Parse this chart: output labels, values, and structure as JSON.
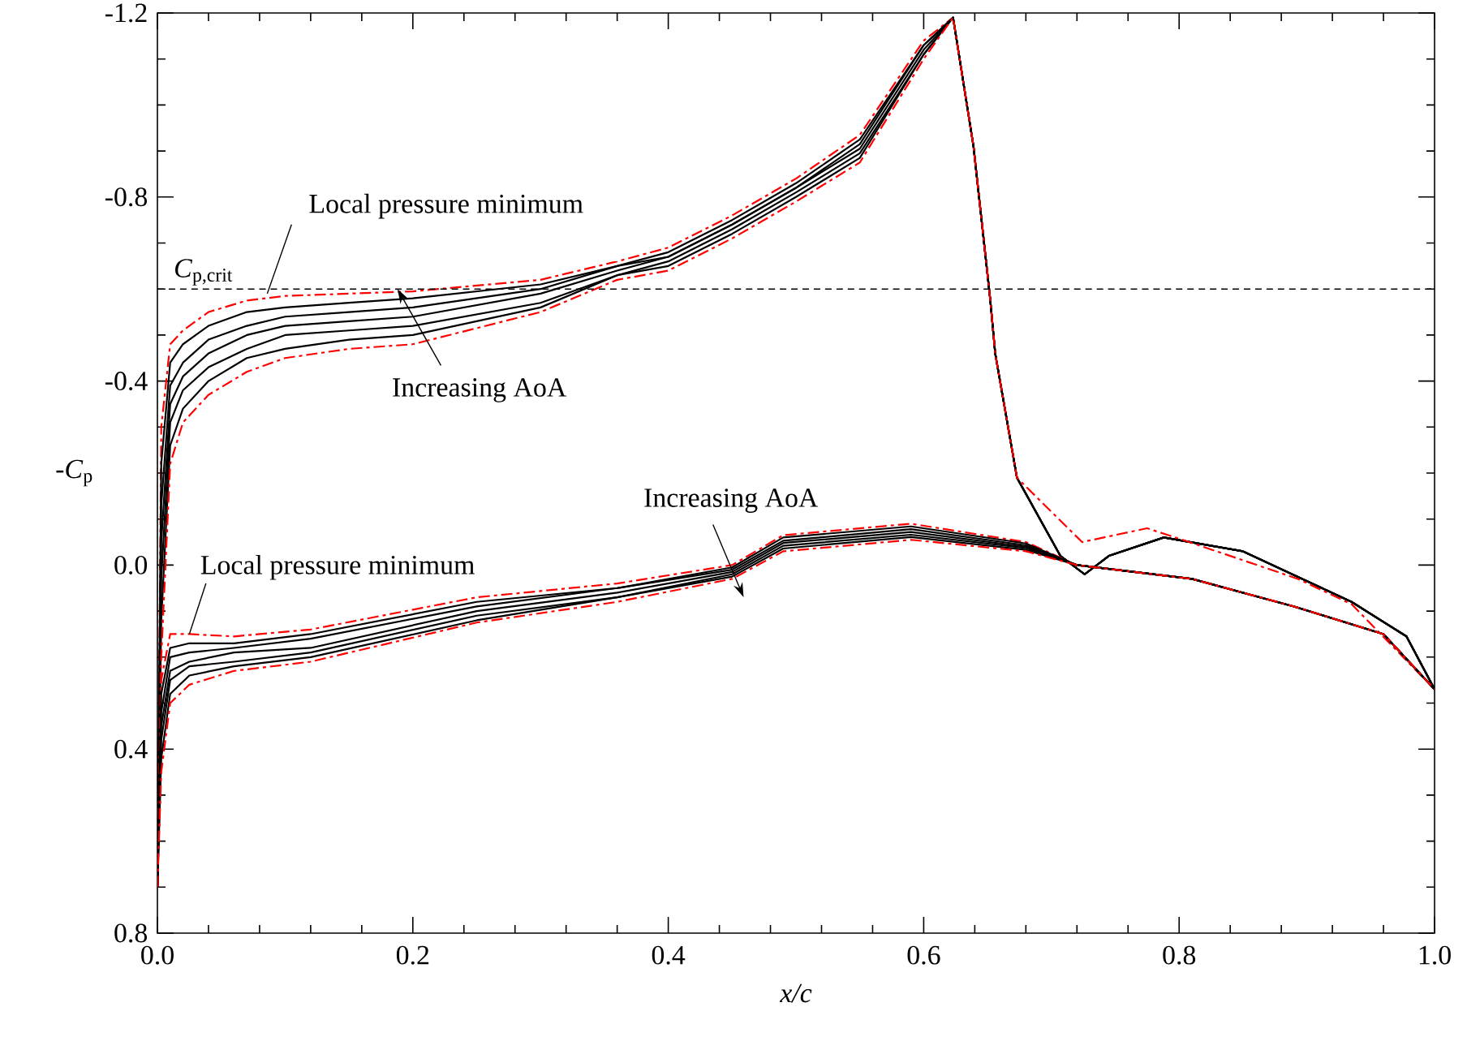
{
  "chart_data": {
    "type": "line",
    "xlabel": "x/c",
    "ylabel": "-*C*$_{p}$",
    "xlim": [
      0,
      1
    ],
    "ylim": [
      0.8,
      -1.2
    ],
    "xticks": [
      {
        "value": 0,
        "label": "0.0"
      },
      {
        "value": 0.04,
        "label": null
      },
      {
        "value": 0.08,
        "label": null
      },
      {
        "value": 0.12,
        "label": null
      },
      {
        "value": 0.16,
        "label": null
      },
      0.2,
      {
        "value": 0.24,
        "label": null
      },
      {
        "value": 0.28,
        "label": null
      },
      {
        "value": 0.32,
        "label": null
      },
      {
        "value": 0.36,
        "label": null
      },
      0.4,
      {
        "value": 0.44,
        "label": null
      },
      {
        "value": 0.48,
        "label": null
      },
      {
        "value": 0.52,
        "label": null
      },
      {
        "value": 0.56,
        "label": null
      },
      0.6,
      {
        "value": 0.64,
        "label": null
      },
      {
        "value": 0.68,
        "label": null
      },
      {
        "value": 0.72,
        "label": null
      },
      {
        "value": 0.76,
        "label": null
      },
      0.8,
      {
        "value": 0.84,
        "label": null
      },
      {
        "value": 0.88,
        "label": null
      },
      {
        "value": 0.92,
        "label": null
      },
      {
        "value": 0.96,
        "label": null
      },
      {
        "value": 1,
        "label": "1.0"
      }
    ],
    "yticks": [
      -1.2,
      {
        "value": -1.1,
        "label": null
      },
      {
        "value": -1.0,
        "label": null
      },
      {
        "value": -0.9,
        "label": null
      },
      -0.8,
      {
        "value": -0.7,
        "label": null
      },
      {
        "value": -0.6,
        "label": null
      },
      {
        "value": -0.5,
        "label": null
      },
      -0.4,
      {
        "value": -0.3,
        "label": null
      },
      {
        "value": -0.2,
        "label": null
      },
      {
        "value": -0.1,
        "label": null
      },
      {
        "value": 0,
        "label": "0.0"
      },
      {
        "value": 0.1,
        "label": null
      },
      {
        "value": 0.2,
        "label": null
      },
      {
        "value": 0.3,
        "label": null
      },
      0.4,
      {
        "value": 0.5,
        "label": null
      },
      {
        "value": 0.6,
        "label": null
      },
      {
        "value": 0.7,
        "label": null
      },
      0.8
    ],
    "ref_lines": [
      {
        "axis": "y",
        "value": -0.6,
        "label": "*C*$_{p,crit}$",
        "color": "#000000",
        "line_style": "dashed"
      }
    ],
    "annotations": [
      {
        "text": "Local pressure minimum",
        "x": 0.086,
        "y": -0.59
      },
      {
        "text": "Local pressure minimum",
        "x": 0.025,
        "y": 0.15
      },
      {
        "text": "Increasing AoA",
        "x": 0.188,
        "y": -0.6
      },
      "Increasing AoA"
    ],
    "series": [
      {
        "color": "#ff0000",
        "line_style": "dashed",
        "x": [
          0,
          0.003,
          0.01,
          0.02,
          0.04,
          0.07,
          0.1,
          0.15,
          0.2,
          0.3,
          0.36,
          0.4,
          0.45,
          0.5,
          0.55,
          0.6,
          0.623,
          0.639,
          0.652,
          0.656,
          0.673,
          0.707,
          0.726,
          0.745,
          0.788,
          0.85,
          0.935,
          0.978,
          1.0
        ],
        "values": [
          0.7,
          -0.3,
          -0.48,
          -0.51,
          -0.55,
          -0.575,
          -0.585,
          -0.59,
          -0.595,
          -0.62,
          -0.66,
          -0.69,
          -0.76,
          -0.84,
          -0.935,
          -1.14,
          -1.19,
          -0.91,
          -0.58,
          -0.46,
          -0.19,
          -0.02,
          0.02,
          -0.02,
          -0.06,
          -0.03,
          0.08,
          0.155,
          0.27
        ]
      },
      {
        "color": "#000000",
        "line_style": "solid",
        "x": [
          0,
          0.003,
          0.01,
          0.02,
          0.04,
          0.07,
          0.1,
          0.15,
          0.2,
          0.3,
          0.36,
          0.4,
          0.45,
          0.5,
          0.55,
          0.6,
          0.623,
          0.639,
          0.652,
          0.656,
          0.673,
          0.707,
          0.726,
          0.745,
          0.788,
          0.85,
          0.935,
          0.978,
          1.0
        ],
        "values": [
          0.7,
          -0.22,
          -0.44,
          -0.48,
          -0.52,
          -0.55,
          -0.56,
          -0.57,
          -0.58,
          -0.61,
          -0.65,
          -0.68,
          -0.75,
          -0.83,
          -0.925,
          -1.13,
          -1.19,
          -0.91,
          -0.58,
          -0.46,
          -0.19,
          -0.02,
          0.02,
          -0.02,
          -0.06,
          -0.03,
          0.08,
          0.155,
          0.27
        ]
      },
      {
        "color": "#000000",
        "line_style": "solid",
        "x": [
          0,
          0.003,
          0.01,
          0.02,
          0.04,
          0.07,
          0.1,
          0.15,
          0.2,
          0.3,
          0.36,
          0.4,
          0.45,
          0.5,
          0.55,
          0.6,
          0.623,
          0.639,
          0.652,
          0.656,
          0.673,
          0.707,
          0.726,
          0.745,
          0.788,
          0.85,
          0.935,
          0.978,
          1.0
        ],
        "values": [
          0.7,
          -0.13,
          -0.39,
          -0.44,
          -0.49,
          -0.52,
          -0.54,
          -0.55,
          -0.56,
          -0.6,
          -0.65,
          -0.67,
          -0.74,
          -0.82,
          -0.915,
          -1.13,
          -1.19,
          -0.91,
          -0.58,
          -0.46,
          -0.19,
          -0.02,
          0.02,
          -0.02,
          -0.06,
          -0.03,
          0.08,
          0.155,
          0.27
        ]
      },
      {
        "color": "#000000",
        "line_style": "solid",
        "x": [
          0,
          0.003,
          0.01,
          0.02,
          0.04,
          0.07,
          0.1,
          0.15,
          0.2,
          0.3,
          0.36,
          0.4,
          0.45,
          0.5,
          0.55,
          0.6,
          0.623,
          0.639,
          0.652,
          0.656,
          0.673,
          0.707,
          0.726,
          0.745,
          0.788,
          0.85,
          0.935,
          0.978,
          1.0
        ],
        "values": [
          0.7,
          -0.05,
          -0.35,
          -0.41,
          -0.46,
          -0.5,
          -0.52,
          -0.53,
          -0.54,
          -0.59,
          -0.64,
          -0.67,
          -0.74,
          -0.82,
          -0.905,
          -1.12,
          -1.19,
          -0.91,
          -0.58,
          -0.46,
          -0.19,
          -0.02,
          0.02,
          -0.02,
          -0.06,
          -0.03,
          0.08,
          0.155,
          0.27
        ]
      },
      {
        "color": "#000000",
        "line_style": "solid",
        "x": [
          0,
          0.003,
          0.01,
          0.02,
          0.04,
          0.07,
          0.1,
          0.15,
          0.2,
          0.3,
          0.36,
          0.4,
          0.45,
          0.5,
          0.55,
          0.6,
          0.623,
          0.639,
          0.652,
          0.656,
          0.673,
          0.707,
          0.726,
          0.745,
          0.788,
          0.85,
          0.935,
          0.978,
          1.0
        ],
        "values": [
          0.7,
          0.03,
          -0.31,
          -0.38,
          -0.43,
          -0.47,
          -0.5,
          -0.51,
          -0.52,
          -0.57,
          -0.63,
          -0.66,
          -0.73,
          -0.81,
          -0.895,
          -1.11,
          -1.19,
          -0.91,
          -0.58,
          -0.46,
          -0.19,
          -0.02,
          0.02,
          -0.02,
          -0.06,
          -0.03,
          0.08,
          0.155,
          0.27
        ]
      },
      {
        "color": "#000000",
        "line_style": "solid",
        "x": [
          0,
          0.003,
          0.01,
          0.02,
          0.04,
          0.07,
          0.1,
          0.15,
          0.2,
          0.3,
          0.36,
          0.4,
          0.45,
          0.5,
          0.55,
          0.6,
          0.623,
          0.639,
          0.652,
          0.656,
          0.673,
          0.707,
          0.726,
          0.745,
          0.788,
          0.85,
          0.935,
          0.978,
          1.0
        ],
        "values": [
          0.7,
          0.12,
          -0.26,
          -0.34,
          -0.4,
          -0.45,
          -0.47,
          -0.49,
          -0.5,
          -0.56,
          -0.63,
          -0.65,
          -0.72,
          -0.8,
          -0.885,
          -1.11,
          -1.19,
          -0.91,
          -0.58,
          -0.46,
          -0.19,
          -0.02,
          0.02,
          -0.02,
          -0.06,
          -0.03,
          0.08,
          0.155,
          0.27
        ]
      },
      {
        "color": "#ff0000",
        "line_style": "dashed",
        "x": [
          0,
          0.003,
          0.01,
          0.02,
          0.04,
          0.07,
          0.1,
          0.15,
          0.2,
          0.3,
          0.36,
          0.4,
          0.45,
          0.5,
          0.55,
          0.6,
          0.623,
          0.639,
          0.652,
          0.656,
          0.673,
          0.724,
          0.775,
          0.808,
          0.893,
          0.935,
          1.0
        ],
        "values": [
          0.7,
          0.2,
          -0.22,
          -0.31,
          -0.37,
          -0.42,
          -0.45,
          -0.47,
          -0.48,
          -0.55,
          -0.62,
          -0.64,
          -0.71,
          -0.79,
          -0.875,
          -1.1,
          -1.19,
          -0.91,
          -0.58,
          -0.46,
          -0.19,
          -0.05,
          -0.08,
          -0.05,
          0.03,
          0.085,
          0.27
        ]
      },
      {
        "color": "#ff0000",
        "line_style": "dashed",
        "x": [
          0,
          0.003,
          0.01,
          0.025,
          0.06,
          0.12,
          0.25,
          0.36,
          0.45,
          0.49,
          0.59,
          0.68,
          0.72,
          0.81,
          0.89,
          0.96,
          1.0
        ],
        "values": [
          0.7,
          0.25,
          0.15,
          0.15,
          0.155,
          0.14,
          0.07,
          0.04,
          0.0,
          -0.065,
          -0.09,
          -0.05,
          0.0,
          0.03,
          0.09,
          0.15,
          0.27
        ]
      },
      {
        "color": "#000000",
        "line_style": "solid",
        "x": [
          0,
          0.003,
          0.01,
          0.025,
          0.06,
          0.12,
          0.25,
          0.36,
          0.45,
          0.49,
          0.59,
          0.68,
          0.72,
          0.81,
          0.89,
          0.96,
          1.0
        ],
        "values": [
          0.7,
          0.28,
          0.18,
          0.17,
          0.17,
          0.15,
          0.08,
          0.05,
          0.005,
          -0.06,
          -0.084,
          -0.047,
          0.0,
          0.03,
          0.09,
          0.15,
          0.27
        ]
      },
      {
        "color": "#000000",
        "line_style": "solid",
        "x": [
          0,
          0.003,
          0.01,
          0.025,
          0.06,
          0.12,
          0.25,
          0.36,
          0.45,
          0.49,
          0.59,
          0.68,
          0.72,
          0.81,
          0.89,
          0.96,
          1.0
        ],
        "values": [
          0.7,
          0.32,
          0.2,
          0.19,
          0.18,
          0.16,
          0.09,
          0.05,
          0.01,
          -0.053,
          -0.078,
          -0.043,
          0.0,
          0.03,
          0.09,
          0.15,
          0.27
        ]
      },
      {
        "color": "#000000",
        "line_style": "solid",
        "x": [
          0,
          0.003,
          0.01,
          0.025,
          0.06,
          0.12,
          0.25,
          0.36,
          0.45,
          0.49,
          0.59,
          0.68,
          0.72,
          0.81,
          0.89,
          0.96,
          1.0
        ],
        "values": [
          0.7,
          0.35,
          0.23,
          0.21,
          0.19,
          0.18,
          0.1,
          0.06,
          0.015,
          -0.048,
          -0.072,
          -0.04,
          0.0,
          0.03,
          0.09,
          0.15,
          0.27
        ]
      },
      {
        "color": "#000000",
        "line_style": "solid",
        "x": [
          0,
          0.003,
          0.01,
          0.025,
          0.06,
          0.12,
          0.25,
          0.36,
          0.45,
          0.49,
          0.59,
          0.68,
          0.72,
          0.81,
          0.89,
          0.96,
          1.0
        ],
        "values": [
          0.7,
          0.38,
          0.25,
          0.22,
          0.21,
          0.19,
          0.11,
          0.07,
          0.02,
          -0.042,
          -0.066,
          -0.037,
          0.0,
          0.03,
          0.09,
          0.15,
          0.27
        ]
      },
      {
        "color": "#000000",
        "line_style": "solid",
        "x": [
          0,
          0.003,
          0.01,
          0.025,
          0.06,
          0.12,
          0.25,
          0.36,
          0.45,
          0.49,
          0.59,
          0.68,
          0.72,
          0.81,
          0.89,
          0.96,
          1.0
        ],
        "values": [
          0.7,
          0.42,
          0.28,
          0.24,
          0.22,
          0.2,
          0.12,
          0.07,
          0.025,
          -0.036,
          -0.061,
          -0.033,
          0.0,
          0.03,
          0.09,
          0.15,
          0.27
        ]
      },
      {
        "color": "#ff0000",
        "line_style": "dashed",
        "x": [
          0,
          0.003,
          0.01,
          0.025,
          0.06,
          0.12,
          0.25,
          0.36,
          0.45,
          0.49,
          0.59,
          0.68,
          0.72,
          0.81,
          0.89,
          0.96,
          1.0
        ],
        "values": [
          0.7,
          0.45,
          0.3,
          0.26,
          0.23,
          0.21,
          0.125,
          0.08,
          0.03,
          -0.03,
          -0.055,
          -0.03,
          0.0,
          0.03,
          0.09,
          0.15,
          0.27
        ]
      }
    ]
  }
}
